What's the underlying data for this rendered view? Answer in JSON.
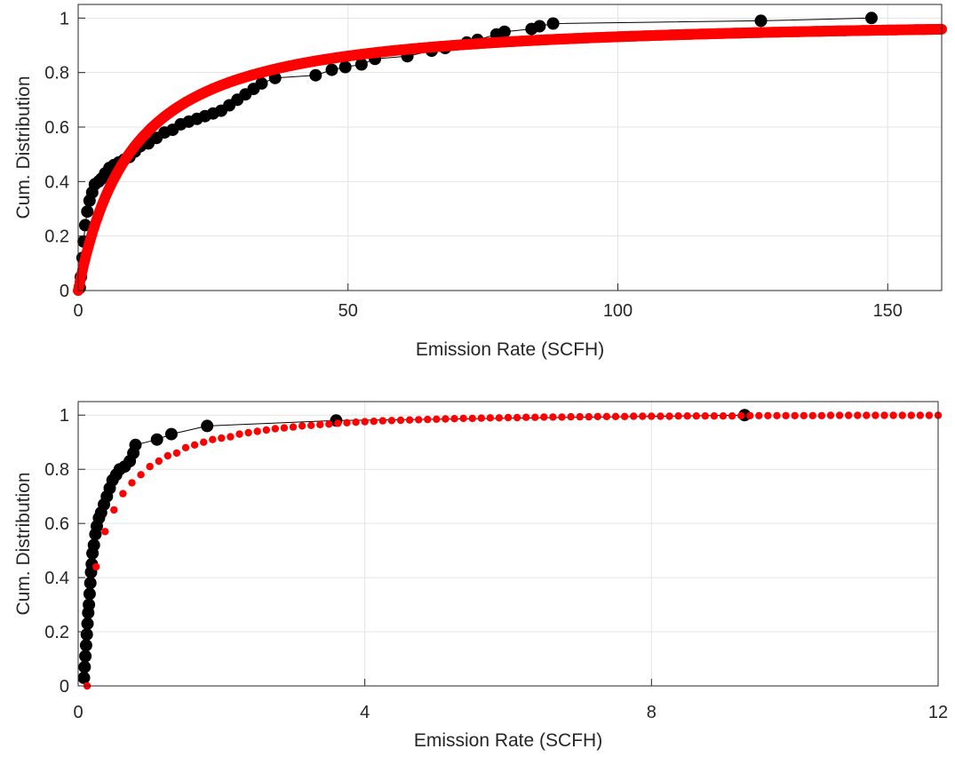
{
  "chart_data": [
    {
      "type": "scatter",
      "xlabel": "Emission Rate (SCFH)",
      "ylabel": "Cum. Distribution",
      "xlim": [
        0,
        160
      ],
      "ylim": [
        0,
        1.05
      ],
      "xticks": [
        "0",
        "50",
        "100",
        "150"
      ],
      "xtick_values": [
        0,
        50,
        100,
        150
      ],
      "yticks": [
        "0",
        "0.2",
        "0.4",
        "0.6",
        "0.8",
        "1"
      ],
      "ytick_values": [
        0,
        0.2,
        0.4,
        0.6,
        0.8,
        1
      ],
      "grid": true,
      "series": [
        {
          "color": "#000000",
          "style": "markers connected by thin line",
          "points": [
            [
              0.3,
              0.01
            ],
            [
              0.5,
              0.05
            ],
            [
              0.8,
              0.12
            ],
            [
              1.0,
              0.18
            ],
            [
              1.3,
              0.24
            ],
            [
              1.7,
              0.29
            ],
            [
              2.1,
              0.33
            ],
            [
              2.6,
              0.36
            ],
            [
              3.1,
              0.39
            ],
            [
              3.8,
              0.4
            ],
            [
              4.3,
              0.41
            ],
            [
              5.0,
              0.43
            ],
            [
              5.8,
              0.45
            ],
            [
              6.6,
              0.46
            ],
            [
              7.5,
              0.47
            ],
            [
              8.5,
              0.48
            ],
            [
              9.5,
              0.49
            ],
            [
              10.5,
              0.51
            ],
            [
              11.5,
              0.53
            ],
            [
              13.0,
              0.54
            ],
            [
              14.5,
              0.56
            ],
            [
              16.0,
              0.58
            ],
            [
              17.5,
              0.59
            ],
            [
              19.0,
              0.61
            ],
            [
              20.5,
              0.62
            ],
            [
              22.0,
              0.63
            ],
            [
              23.5,
              0.64
            ],
            [
              25.0,
              0.65
            ],
            [
              26.5,
              0.66
            ],
            [
              28.0,
              0.68
            ],
            [
              29.5,
              0.7
            ],
            [
              31.0,
              0.72
            ],
            [
              32.5,
              0.74
            ],
            [
              34.0,
              0.76
            ],
            [
              36.5,
              0.78
            ],
            [
              44.0,
              0.79
            ],
            [
              47.0,
              0.81
            ],
            [
              49.5,
              0.82
            ],
            [
              52.5,
              0.83
            ],
            [
              55.0,
              0.85
            ],
            [
              61.0,
              0.86
            ],
            [
              65.5,
              0.88
            ],
            [
              68.0,
              0.89
            ],
            [
              72.0,
              0.91
            ],
            [
              74.0,
              0.92
            ],
            [
              77.5,
              0.94
            ],
            [
              79.0,
              0.95
            ],
            [
              84.0,
              0.96
            ],
            [
              85.5,
              0.97
            ],
            [
              88.0,
              0.98
            ],
            [
              126.5,
              0.99
            ],
            [
              147.0,
              1.0
            ]
          ]
        },
        {
          "color": "#ff0000",
          "style": "dense markers (fitted distribution)",
          "curve": "cdf = 1 - (1 + x / 12)^-1.2",
          "x_range": [
            0,
            160
          ]
        }
      ]
    },
    {
      "type": "scatter",
      "xlabel": "Emission Rate (SCFH)",
      "ylabel": "Cum. Distribution",
      "xlim": [
        0,
        12
      ],
      "ylim": [
        0,
        1.05
      ],
      "xticks": [
        "0",
        "4",
        "8",
        "12"
      ],
      "xtick_values": [
        0,
        4,
        8,
        12
      ],
      "yticks": [
        "0",
        "0.2",
        "0.4",
        "0.6",
        "0.8",
        "1"
      ],
      "ytick_values": [
        0,
        0.2,
        0.4,
        0.6,
        0.8,
        1
      ],
      "grid": true,
      "series": [
        {
          "color": "#000000",
          "style": "markers connected by thin line",
          "points": [
            [
              0.08,
              0.03
            ],
            [
              0.09,
              0.07
            ],
            [
              0.1,
              0.11
            ],
            [
              0.11,
              0.15
            ],
            [
              0.12,
              0.19
            ],
            [
              0.13,
              0.23
            ],
            [
              0.14,
              0.27
            ],
            [
              0.15,
              0.3
            ],
            [
              0.16,
              0.34
            ],
            [
              0.17,
              0.38
            ],
            [
              0.18,
              0.42
            ],
            [
              0.19,
              0.45
            ],
            [
              0.2,
              0.49
            ],
            [
              0.22,
              0.52
            ],
            [
              0.24,
              0.56
            ],
            [
              0.26,
              0.59
            ],
            [
              0.29,
              0.62
            ],
            [
              0.32,
              0.64
            ],
            [
              0.36,
              0.67
            ],
            [
              0.4,
              0.7
            ],
            [
              0.44,
              0.73
            ],
            [
              0.48,
              0.76
            ],
            [
              0.53,
              0.78
            ],
            [
              0.58,
              0.8
            ],
            [
              0.65,
              0.81
            ],
            [
              0.72,
              0.83
            ],
            [
              0.77,
              0.86
            ],
            [
              0.8,
              0.89
            ],
            [
              1.1,
              0.91
            ],
            [
              1.3,
              0.93
            ],
            [
              1.8,
              0.96
            ],
            [
              3.6,
              0.98
            ],
            [
              9.3,
              1.0
            ]
          ]
        },
        {
          "color": "#ff0000",
          "style": "markers (fitted distribution)",
          "points": [
            [
              0.125,
              0.0
            ],
            [
              0.25,
              0.44
            ],
            [
              0.375,
              0.57
            ],
            [
              0.5,
              0.65
            ],
            [
              0.625,
              0.71
            ],
            [
              0.75,
              0.75
            ],
            [
              0.875,
              0.78
            ],
            [
              1.0,
              0.81
            ],
            [
              1.125,
              0.83
            ],
            [
              1.25,
              0.85
            ],
            [
              1.375,
              0.86
            ],
            [
              1.5,
              0.88
            ],
            [
              1.625,
              0.89
            ],
            [
              1.75,
              0.9
            ],
            [
              1.875,
              0.91
            ],
            [
              2.0,
              0.915
            ],
            [
              2.125,
              0.92
            ],
            [
              2.25,
              0.93
            ],
            [
              2.375,
              0.935
            ],
            [
              2.5,
              0.94
            ],
            [
              2.625,
              0.945
            ],
            [
              2.75,
              0.95
            ],
            [
              2.875,
              0.953
            ],
            [
              3.0,
              0.956
            ],
            [
              3.125,
              0.96
            ],
            [
              3.25,
              0.962
            ],
            [
              3.375,
              0.965
            ],
            [
              3.5,
              0.967
            ],
            [
              3.625,
              0.97
            ],
            [
              3.75,
              0.972
            ],
            [
              3.875,
              0.974
            ],
            [
              4.0,
              0.976
            ],
            [
              4.125,
              0.977
            ],
            [
              4.25,
              0.979
            ],
            [
              4.375,
              0.98
            ],
            [
              4.5,
              0.981
            ],
            [
              4.625,
              0.982
            ],
            [
              4.75,
              0.983
            ],
            [
              4.875,
              0.984
            ],
            [
              5.0,
              0.985
            ],
            [
              5.125,
              0.986
            ],
            [
              5.25,
              0.987
            ],
            [
              5.375,
              0.988
            ],
            [
              5.5,
              0.988
            ],
            [
              5.625,
              0.989
            ],
            [
              5.75,
              0.99
            ],
            [
              5.875,
              0.99
            ],
            [
              6.0,
              0.991
            ],
            [
              6.125,
              0.991
            ],
            [
              6.25,
              0.992
            ],
            [
              6.375,
              0.992
            ],
            [
              6.5,
              0.993
            ],
            [
              6.625,
              0.993
            ],
            [
              6.75,
              0.993
            ],
            [
              6.875,
              0.994
            ],
            [
              7.0,
              0.994
            ],
            [
              7.125,
              0.994
            ],
            [
              7.25,
              0.995
            ],
            [
              7.375,
              0.995
            ],
            [
              7.5,
              0.995
            ],
            [
              7.625,
              0.995
            ],
            [
              7.75,
              0.996
            ],
            [
              7.875,
              0.996
            ],
            [
              8.0,
              0.996
            ],
            [
              8.125,
              0.996
            ],
            [
              8.25,
              0.996
            ],
            [
              8.375,
              0.997
            ],
            [
              8.5,
              0.997
            ],
            [
              8.625,
              0.997
            ],
            [
              8.75,
              0.997
            ],
            [
              8.875,
              0.997
            ],
            [
              9.0,
              0.997
            ],
            [
              9.125,
              0.997
            ],
            [
              9.25,
              0.998
            ],
            [
              9.375,
              0.998
            ],
            [
              9.5,
              0.998
            ],
            [
              9.625,
              0.998
            ],
            [
              9.75,
              0.998
            ],
            [
              9.875,
              0.998
            ],
            [
              10.0,
              0.998
            ],
            [
              10.125,
              0.998
            ],
            [
              10.25,
              0.998
            ],
            [
              10.375,
              0.998
            ],
            [
              10.5,
              0.999
            ],
            [
              10.625,
              0.999
            ],
            [
              10.75,
              0.999
            ],
            [
              10.875,
              0.999
            ],
            [
              11.0,
              0.999
            ],
            [
              11.125,
              0.999
            ],
            [
              11.25,
              0.999
            ],
            [
              11.375,
              0.999
            ],
            [
              11.5,
              0.999
            ],
            [
              11.625,
              0.999
            ],
            [
              11.75,
              0.999
            ],
            [
              11.875,
              0.999
            ],
            [
              12.0,
              0.999
            ]
          ]
        }
      ]
    }
  ]
}
